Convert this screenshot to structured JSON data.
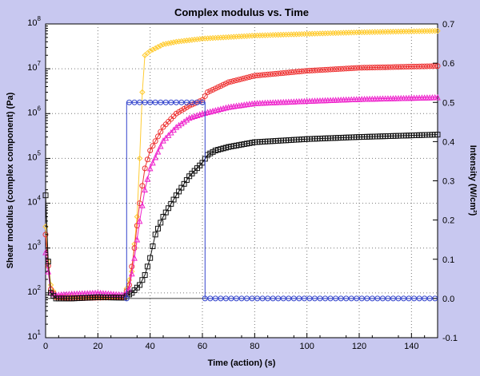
{
  "chart_data": {
    "type": "scatter",
    "title": "Complex modulus vs. Time",
    "xlabel": "Time (action) (s)",
    "ylabel_left": "Shear modulus (complex component) (Pa)",
    "ylabel_right": "Intensity (W/cm²)",
    "xlim": [
      0,
      150
    ],
    "ylim_left": [
      10,
      100000000
    ],
    "yscale_left": "log",
    "ylim_right": [
      -0.1,
      0.7
    ],
    "grid": true,
    "x_ticks": [
      "0",
      "20",
      "40",
      "60",
      "80",
      "100",
      "120",
      "140"
    ],
    "y_left_ticks": [
      {
        "base": "10",
        "exp": "1"
      },
      {
        "base": "10",
        "exp": "2"
      },
      {
        "base": "10",
        "exp": "3"
      },
      {
        "base": "10",
        "exp": "4"
      },
      {
        "base": "10",
        "exp": "5"
      },
      {
        "base": "10",
        "exp": "6"
      },
      {
        "base": "10",
        "exp": "7"
      },
      {
        "base": "10",
        "exp": "8"
      }
    ],
    "y_right_ticks": [
      "-0.1",
      "0.0",
      "0.1",
      "0.2",
      "0.3",
      "0.4",
      "0.5",
      "0.6",
      "0.7"
    ],
    "series": [
      {
        "color": "#ffcc33",
        "marker": "diamond",
        "axis": "left",
        "points": [
          [
            0,
            3000
          ],
          [
            1,
            500
          ],
          [
            2,
            150
          ],
          [
            4,
            80
          ],
          [
            10,
            80
          ],
          [
            20,
            78
          ],
          [
            30,
            80
          ],
          [
            33,
            300
          ],
          [
            35,
            5000
          ],
          [
            36,
            100000
          ],
          [
            37,
            3000000
          ],
          [
            38,
            20000000
          ],
          [
            40,
            25000000
          ],
          [
            45,
            35000000
          ],
          [
            50,
            40000000
          ],
          [
            60,
            47000000
          ],
          [
            80,
            55000000
          ],
          [
            100,
            60000000
          ],
          [
            120,
            65000000
          ],
          [
            150,
            70000000
          ]
        ]
      },
      {
        "color": "#ee3333",
        "marker": "circle",
        "axis": "left",
        "points": [
          [
            0,
            2000
          ],
          [
            1,
            400
          ],
          [
            2,
            120
          ],
          [
            4,
            80
          ],
          [
            10,
            75
          ],
          [
            20,
            78
          ],
          [
            30,
            80
          ],
          [
            32,
            150
          ],
          [
            34,
            1000
          ],
          [
            36,
            10000
          ],
          [
            38,
            60000
          ],
          [
            40,
            150000
          ],
          [
            45,
            500000
          ],
          [
            50,
            1000000
          ],
          [
            55,
            1500000
          ],
          [
            60,
            2000000
          ],
          [
            62,
            3000000
          ],
          [
            70,
            5000000
          ],
          [
            80,
            7000000
          ],
          [
            100,
            9000000
          ],
          [
            120,
            10500000
          ],
          [
            150,
            11500000
          ]
        ]
      },
      {
        "color": "#ee22cc",
        "marker": "triangle",
        "axis": "left",
        "points": [
          [
            0,
            800
          ],
          [
            1,
            300
          ],
          [
            2,
            100
          ],
          [
            4,
            90
          ],
          [
            10,
            95
          ],
          [
            20,
            100
          ],
          [
            30,
            90
          ],
          [
            32,
            120
          ],
          [
            34,
            600
          ],
          [
            36,
            4000
          ],
          [
            38,
            20000
          ],
          [
            40,
            60000
          ],
          [
            45,
            250000
          ],
          [
            50,
            500000
          ],
          [
            55,
            800000
          ],
          [
            60,
            1000000
          ],
          [
            70,
            1400000
          ],
          [
            80,
            1700000
          ],
          [
            100,
            1900000
          ],
          [
            120,
            2100000
          ],
          [
            150,
            2300000
          ]
        ]
      },
      {
        "color": "#111111",
        "marker": "square",
        "axis": "left",
        "points": [
          [
            0,
            15000
          ],
          [
            1,
            500
          ],
          [
            2,
            100
          ],
          [
            4,
            75
          ],
          [
            10,
            75
          ],
          [
            20,
            80
          ],
          [
            30,
            78
          ],
          [
            33,
            100
          ],
          [
            36,
            150
          ],
          [
            38,
            250
          ],
          [
            40,
            600
          ],
          [
            42,
            2000
          ],
          [
            45,
            5000
          ],
          [
            50,
            15000
          ],
          [
            55,
            40000
          ],
          [
            60,
            80000
          ],
          [
            62,
            120000
          ],
          [
            65,
            150000
          ],
          [
            70,
            180000
          ],
          [
            80,
            230000
          ],
          [
            100,
            270000
          ],
          [
            120,
            300000
          ],
          [
            150,
            340000
          ]
        ]
      },
      {
        "color": "#3344cc",
        "marker": "circle",
        "axis": "right",
        "points": [
          [
            31,
            0.0
          ],
          [
            31,
            0.5
          ],
          [
            35,
            0.5
          ],
          [
            40,
            0.5
          ],
          [
            45,
            0.5
          ],
          [
            50,
            0.5
          ],
          [
            55,
            0.5
          ],
          [
            60,
            0.5
          ],
          [
            61,
            0.5
          ],
          [
            61,
            0.0
          ],
          [
            70,
            0.0
          ],
          [
            80,
            0.0
          ],
          [
            90,
            0.0
          ],
          [
            100,
            0.0
          ],
          [
            110,
            0.0
          ],
          [
            120,
            0.0
          ],
          [
            130,
            0.0
          ],
          [
            140,
            0.0
          ],
          [
            150,
            0.0
          ]
        ]
      }
    ]
  }
}
